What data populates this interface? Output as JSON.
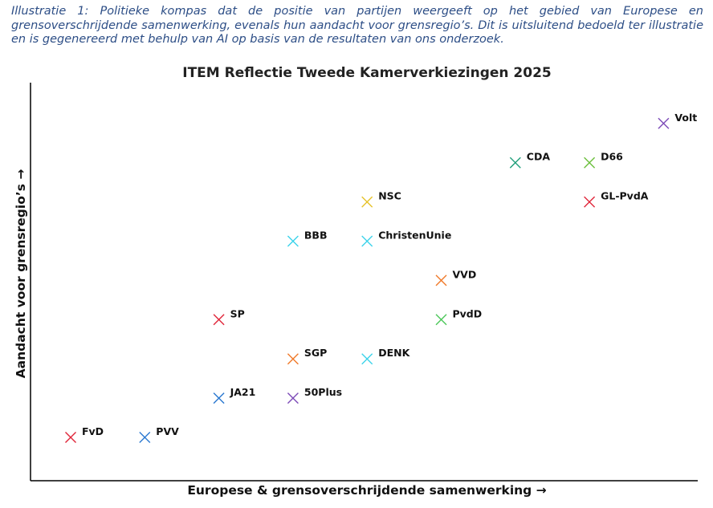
{
  "caption": "Illustratie 1: Politieke kompas dat de positie van partijen weergeeft op het gebied van Europese en grensoverschrijdende samenwerking, evenals hun aandacht voor grensregio’s. Dit is uitsluitend bedoeld ter illustratie en is gegenereerd met behulp van AI op basis van de resultaten van ons onderzoek.",
  "chart_data": {
    "type": "scatter",
    "title": "ITEM Reflectie Tweede Kamerverkiezingen 2025",
    "xlabel": "Europese & grensoverschrijdende samenwerking →",
    "ylabel": "Aandacht voor grensregio’s →",
    "xlim": [
      0.5,
      9.5
    ],
    "ylim": [
      0,
      10
    ],
    "grid": false,
    "marker": "x",
    "points": [
      {
        "label": "FvD",
        "x": 1,
        "y": 1,
        "color": "#e0263a"
      },
      {
        "label": "PVV",
        "x": 2,
        "y": 1,
        "color": "#2a78d0"
      },
      {
        "label": "JA21",
        "x": 3,
        "y": 2,
        "color": "#2a78d0"
      },
      {
        "label": "50Plus",
        "x": 4,
        "y": 2,
        "color": "#7d4cb8"
      },
      {
        "label": "SGP",
        "x": 4,
        "y": 3,
        "color": "#f07a2a"
      },
      {
        "label": "DENK",
        "x": 5,
        "y": 3,
        "color": "#3cd3ea"
      },
      {
        "label": "SP",
        "x": 3,
        "y": 4,
        "color": "#e0263a"
      },
      {
        "label": "PvdD",
        "x": 6,
        "y": 4,
        "color": "#4cc75a"
      },
      {
        "label": "VVD",
        "x": 6,
        "y": 5,
        "color": "#f07a2a"
      },
      {
        "label": "BBB",
        "x": 4,
        "y": 6,
        "color": "#3cd3ea"
      },
      {
        "label": "ChristenUnie",
        "x": 5,
        "y": 6,
        "color": "#3cd3ea"
      },
      {
        "label": "NSC",
        "x": 5,
        "y": 7,
        "color": "#e6c22a"
      },
      {
        "label": "GL-PvdA",
        "x": 8,
        "y": 7,
        "color": "#e0263a"
      },
      {
        "label": "CDA",
        "x": 7,
        "y": 8,
        "color": "#1f9e7a"
      },
      {
        "label": "D66",
        "x": 8,
        "y": 8,
        "color": "#6cbf3c"
      },
      {
        "label": "Volt",
        "x": 9,
        "y": 9,
        "color": "#7d4cb8"
      }
    ]
  }
}
